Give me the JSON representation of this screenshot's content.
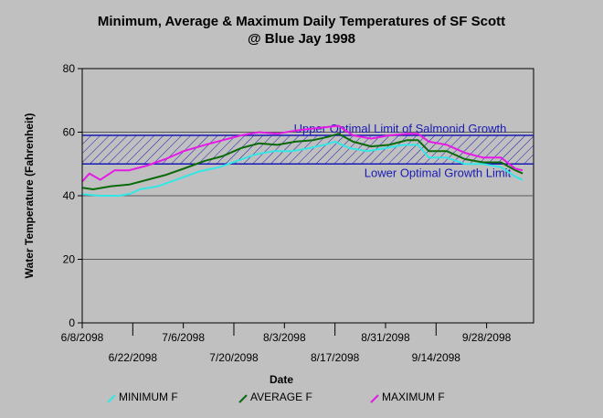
{
  "chart_data": {
    "type": "line",
    "title_line1": "Minimum, Average & Maximum Daily Temperatures of SF Scott",
    "title_line2": "@ Blue Jay 1998",
    "xlabel": "Date",
    "ylabel": "Water Temperature (Fahrenheit)",
    "ylim": [
      0,
      80
    ],
    "yticks": [
      "0",
      "20",
      "40",
      "60",
      "80"
    ],
    "x_start": "6/8/2098",
    "x_end": "10/11/2098",
    "xticks": [
      {
        "date": "6/8/2098",
        "label": "6/8/2098",
        "row": 1
      },
      {
        "date": "6/22/2098",
        "label": "6/22/2098",
        "row": 2
      },
      {
        "date": "7/6/2098",
        "label": "7/6/2098",
        "row": 1
      },
      {
        "date": "7/20/2098",
        "label": "7/20/2098",
        "row": 2
      },
      {
        "date": "8/3/2098",
        "label": "8/3/2098",
        "row": 1
      },
      {
        "date": "8/17/2098",
        "label": "8/17/2098",
        "row": 2
      },
      {
        "date": "8/31/2098",
        "label": "8/31/2098",
        "row": 1
      },
      {
        "date": "9/14/2098",
        "label": "9/14/2098",
        "row": 2
      },
      {
        "date": "9/28/2098",
        "label": "9/28/2098",
        "row": 1
      }
    ],
    "optimal_band": {
      "lower": 50,
      "upper": 59,
      "upper_label": "Upper Optimal Limit of Salmonid Growth",
      "lower_label": "Lower Optimal Growth Limit",
      "color": "#1a1ab4"
    },
    "grid": true,
    "legend_position": "bottom",
    "series": [
      {
        "name": "MINIMUM F",
        "color": "#33e6e6",
        "points": [
          [
            "6/8/2098",
            40.5
          ],
          [
            "6/13/2098",
            40
          ],
          [
            "6/18/2098",
            40
          ],
          [
            "6/21/2098",
            40.5
          ],
          [
            "6/24/2098",
            42
          ],
          [
            "6/29/2098",
            43
          ],
          [
            "7/4/2098",
            45
          ],
          [
            "7/10/2098",
            47.5
          ],
          [
            "7/16/2098",
            49
          ],
          [
            "7/21/2098",
            51
          ],
          [
            "7/26/2098",
            53
          ],
          [
            "7/31/2098",
            54
          ],
          [
            "8/5/2098",
            54
          ],
          [
            "8/10/2098",
            55
          ],
          [
            "8/14/2098",
            56
          ],
          [
            "8/17/2098",
            57
          ],
          [
            "8/21/2098",
            55
          ],
          [
            "8/26/2098",
            54
          ],
          [
            "8/31/2098",
            55
          ],
          [
            "9/5/2098",
            56
          ],
          [
            "9/9/2098",
            56
          ],
          [
            "9/12/2098",
            52
          ],
          [
            "9/17/2098",
            52
          ],
          [
            "9/22/2098",
            50
          ],
          [
            "9/27/2098",
            50
          ],
          [
            "10/2/2098",
            49
          ],
          [
            "10/6/2098",
            46
          ],
          [
            "10/8/2098",
            45
          ]
        ]
      },
      {
        "name": "AVERAGE F",
        "color": "#0a6a0a",
        "points": [
          [
            "6/8/2098",
            42.5
          ],
          [
            "6/11/2098",
            42
          ],
          [
            "6/16/2098",
            43
          ],
          [
            "6/21/2098",
            43.5
          ],
          [
            "6/26/2098",
            45
          ],
          [
            "7/1/2098",
            46.5
          ],
          [
            "7/6/2098",
            48.5
          ],
          [
            "7/12/2098",
            51
          ],
          [
            "7/17/2098",
            52.5
          ],
          [
            "7/22/2098",
            55
          ],
          [
            "7/27/2098",
            56.5
          ],
          [
            "8/1/2098",
            56
          ],
          [
            "8/6/2098",
            57
          ],
          [
            "8/11/2098",
            57.5
          ],
          [
            "8/15/2098",
            58.5
          ],
          [
            "8/18/2098",
            59.5
          ],
          [
            "8/22/2098",
            57
          ],
          [
            "8/27/2098",
            55.5
          ],
          [
            "9/1/2098",
            56
          ],
          [
            "9/6/2098",
            57.5
          ],
          [
            "9/9/2098",
            57.5
          ],
          [
            "9/12/2098",
            54
          ],
          [
            "9/17/2098",
            54
          ],
          [
            "9/22/2098",
            51.5
          ],
          [
            "9/27/2098",
            50.5
          ],
          [
            "10/2/2098",
            50.5
          ],
          [
            "10/6/2098",
            48
          ],
          [
            "10/8/2098",
            47
          ]
        ]
      },
      {
        "name": "MAXIMUM F",
        "color": "#e61ae6",
        "points": [
          [
            "6/8/2098",
            44.5
          ],
          [
            "6/10/2098",
            47
          ],
          [
            "6/13/2098",
            45
          ],
          [
            "6/17/2098",
            48
          ],
          [
            "6/21/2098",
            48
          ],
          [
            "6/26/2098",
            49.5
          ],
          [
            "7/1/2098",
            51.5
          ],
          [
            "7/6/2098",
            54
          ],
          [
            "7/12/2098",
            56
          ],
          [
            "7/17/2098",
            57.5
          ],
          [
            "7/22/2098",
            59
          ],
          [
            "7/27/2098",
            60
          ],
          [
            "8/1/2098",
            59.5
          ],
          [
            "8/6/2098",
            60.5
          ],
          [
            "8/10/2098",
            61
          ],
          [
            "8/14/2098",
            61.5
          ],
          [
            "8/18/2098",
            62
          ],
          [
            "8/22/2098",
            59
          ],
          [
            "8/27/2098",
            58
          ],
          [
            "9/1/2098",
            59
          ],
          [
            "9/6/2098",
            59.5
          ],
          [
            "9/9/2098",
            59.5
          ],
          [
            "9/12/2098",
            57
          ],
          [
            "9/17/2098",
            56
          ],
          [
            "9/22/2098",
            53.5
          ],
          [
            "9/27/2098",
            52
          ],
          [
            "10/2/2098",
            52
          ],
          [
            "10/6/2098",
            48.5
          ],
          [
            "10/8/2098",
            48
          ]
        ]
      }
    ]
  }
}
